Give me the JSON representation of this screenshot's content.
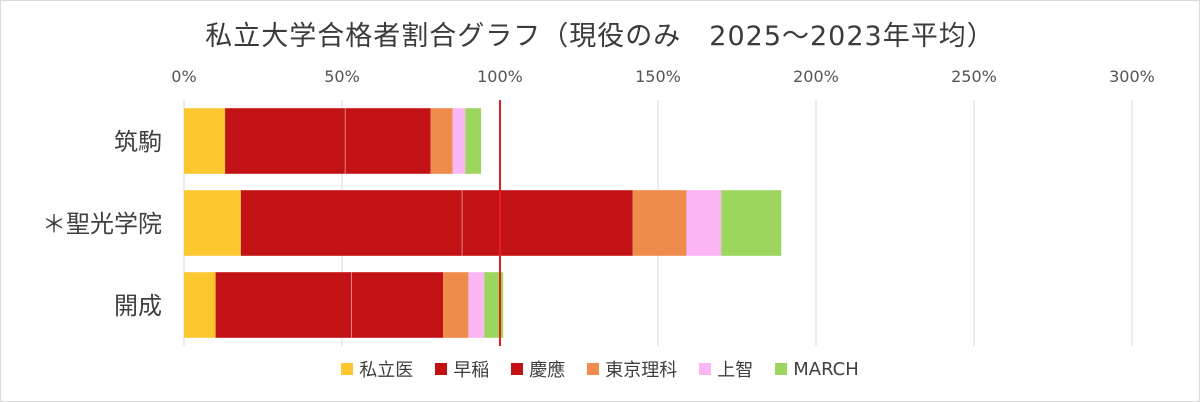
{
  "chart_data": {
    "type": "bar",
    "orientation": "horizontal",
    "stacked": true,
    "title": "私立大学合格者割合グラフ（現役のみ　2025〜2023年平均）",
    "categories": [
      "筑駒",
      "＊聖光学院",
      "開成"
    ],
    "xlim": [
      0,
      300
    ],
    "xticks": [
      "0%",
      "50%",
      "100%",
      "150%",
      "200%",
      "250%",
      "300%"
    ],
    "xtick_values": [
      0,
      50,
      100,
      150,
      200,
      250,
      300
    ],
    "reference_line": {
      "value": 100,
      "color": "#e02020"
    },
    "grid": true,
    "legend_position": "bottom",
    "series": [
      {
        "name": "私立医",
        "color": "#fcc72f",
        "values": [
          13,
          18,
          10
        ]
      },
      {
        "name": "早稲",
        "color": "#c31215",
        "values": [
          38,
          70,
          43
        ]
      },
      {
        "name": "慶應",
        "color": "#c31215",
        "values": [
          27,
          54,
          29
        ]
      },
      {
        "name": "東京理科",
        "color": "#ef8c4b",
        "values": [
          7,
          17,
          8
        ]
      },
      {
        "name": "上智",
        "color": "#fcb6f4",
        "values": [
          4,
          11,
          5
        ]
      },
      {
        "name": "MARCH",
        "color": "#9cd65e",
        "values": [
          5,
          19,
          6
        ]
      }
    ]
  }
}
